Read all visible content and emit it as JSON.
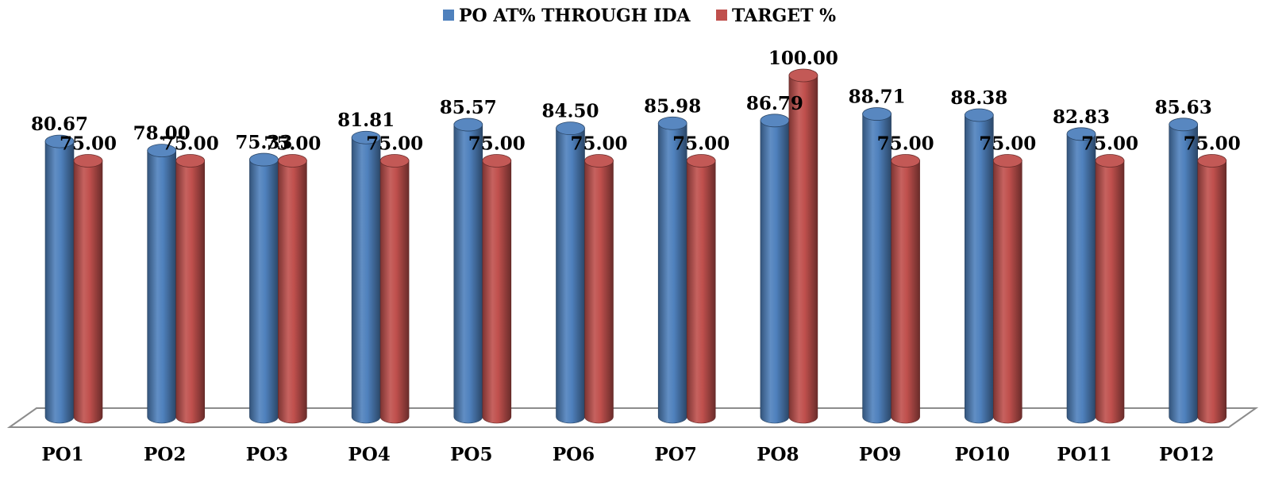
{
  "chart_data": {
    "type": "bar",
    "style": "3d-cylinder",
    "categories": [
      "PO1",
      "PO2",
      "PO3",
      "PO4",
      "PO5",
      "PO6",
      "PO7",
      "PO8",
      "PO9",
      "PO10",
      "PO11",
      "PO12"
    ],
    "series": [
      {
        "name": "PO  AT% THROUGH IDA",
        "color": "#4F81BD",
        "values": [
          80.67,
          78.0,
          75.33,
          81.81,
          85.57,
          84.5,
          85.98,
          86.79,
          88.71,
          88.38,
          82.83,
          85.63
        ],
        "labels": [
          "80.67",
          "78.00",
          "75.33",
          "81.81",
          "85.57",
          "84.50",
          "85.98",
          "86.79",
          "88.71",
          "88.38",
          "82.83",
          "85.63"
        ]
      },
      {
        "name": "TARGET %",
        "color": "#C0504D",
        "values": [
          75.0,
          75.0,
          75.0,
          75.0,
          75.0,
          75.0,
          75.0,
          100.0,
          75.0,
          75.0,
          75.0,
          75.0
        ],
        "labels": [
          "75.00",
          "75.00",
          "75.00",
          "75.00",
          "75.00",
          "75.00",
          "75.00",
          "100.00",
          "75.00",
          "75.00",
          "75.00",
          "75.00"
        ]
      }
    ],
    "ylim": [
      0,
      100
    ],
    "grid": false,
    "legend_position": "top-center",
    "data_labels": true
  }
}
